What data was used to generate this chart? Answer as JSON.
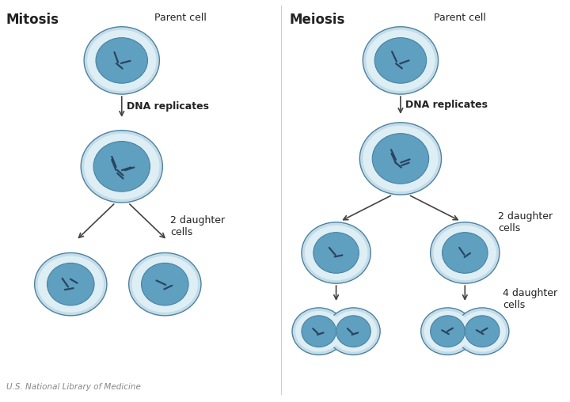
{
  "bg_color": "#ffffff",
  "outer_cell_color": "#c5dce8",
  "ring_color": "#ddeef5",
  "inner_cell_color": "#5f9fc0",
  "cell_border_color": "#4a82a0",
  "chromosome_color": "#2a4560",
  "divider_color": "#cccccc",
  "text_color": "#222222",
  "credit_color": "#888888",
  "title_mitosis": "Mitosis",
  "title_meiosis": "Meiosis",
  "label_parent": "Parent cell",
  "label_dna": "DNA replicates",
  "label_2daughter": "2 daughter\ncells",
  "label_4daughter": "4 daughter\ncells",
  "label_credit": "U.S. National Library of Medicine"
}
